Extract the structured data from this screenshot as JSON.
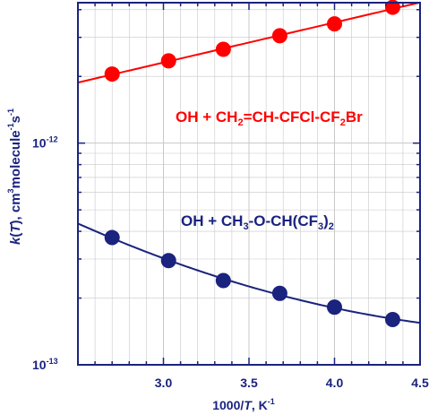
{
  "chart_data": {
    "type": "scatter",
    "xlabel_parts": [
      "1000/",
      "T",
      ",  K",
      "-1"
    ],
    "ylabel_parts": [
      "k",
      "(",
      "T",
      "),  cm",
      "3",
      "molecule",
      "-1",
      "s",
      "-1"
    ],
    "xlim": [
      2.5,
      4.5
    ],
    "ylim": [
      1e-13,
      4.3e-12
    ],
    "y_scale": "log",
    "grid": true,
    "x_tick_labels": [
      "3.0",
      "3.5",
      "4.0",
      "4.5"
    ],
    "y_tick_labels": [
      {
        "value": 1e-12,
        "base": "10",
        "exp": "-12"
      },
      {
        "value": 1e-13,
        "base": "10",
        "exp": "-13"
      }
    ],
    "series": [
      {
        "color": "#ff0000",
        "x": [
          2.7,
          3.03,
          3.35,
          3.68,
          4.0,
          4.34
        ],
        "y": [
          2.05e-12,
          2.35e-12,
          2.65e-12,
          3.05e-12,
          3.45e-12,
          4.1e-12
        ],
        "fit": "exponential"
      },
      {
        "color": "#1a237e",
        "x": [
          2.7,
          3.03,
          3.35,
          3.68,
          4.0,
          4.34
        ],
        "y": [
          3.75e-13,
          2.95e-13,
          2.4e-13,
          2.1e-13,
          1.82e-13,
          1.6e-13
        ],
        "fit": "smooth"
      }
    ],
    "annotations": [
      {
        "color": "#ff0000",
        "parts": [
          "OH + CH",
          "2",
          "=CH-CFCl-CF",
          "2",
          "Br"
        ]
      },
      {
        "color": "#1a237e",
        "parts": [
          "OH + CH",
          "3",
          "-O-CH(CF",
          "3",
          ")",
          "2"
        ]
      }
    ]
  }
}
